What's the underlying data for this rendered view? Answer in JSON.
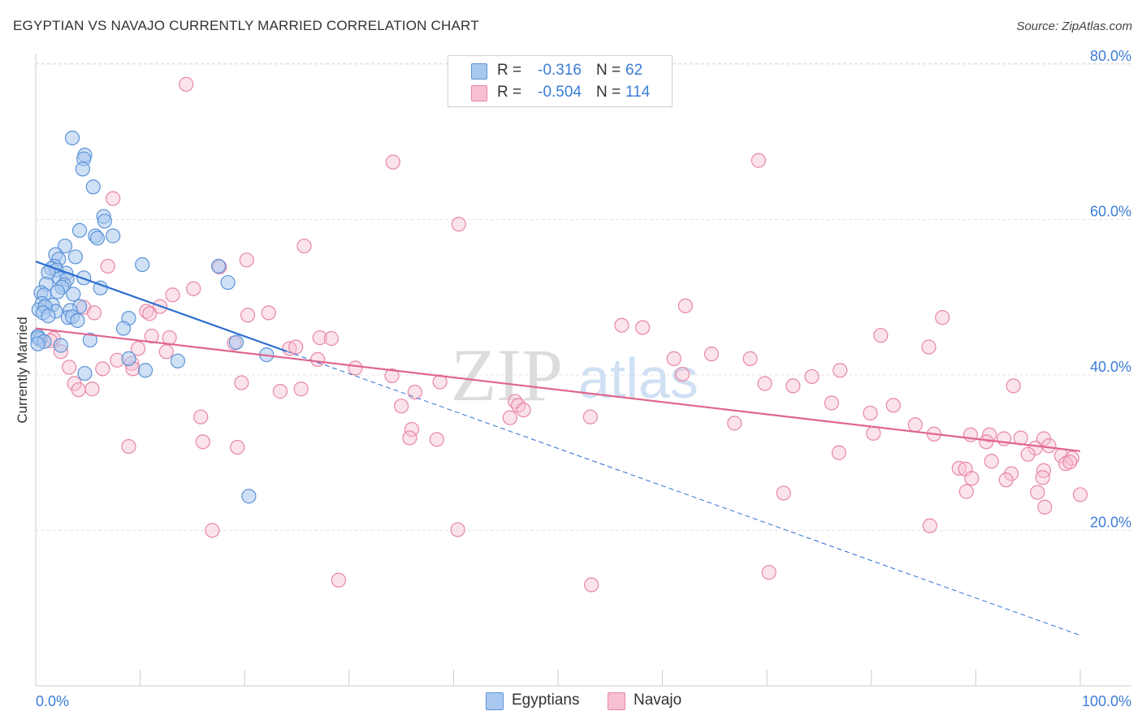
{
  "header": {
    "title": "EGYPTIAN VS NAVAJO CURRENTLY MARRIED CORRELATION CHART",
    "source": "Source: ZipAtlas.com"
  },
  "watermark": {
    "zip": "ZIP",
    "atlas": "atlas"
  },
  "legend": {
    "rows": [
      {
        "r_label": "R =",
        "r_value": "-0.316",
        "n_label": "N =",
        "n_value": "62"
      },
      {
        "r_label": "R =",
        "r_value": "-0.504",
        "n_label": "N =",
        "n_value": "114"
      }
    ]
  },
  "bottom_legend": {
    "egyptians": "Egyptians",
    "navajo": "Navajo"
  },
  "colors": {
    "blue_fill": "#a9c8ef",
    "blue_stroke": "#5b93d8",
    "blue_line": "#2e6fd0",
    "pink_fill": "#f7c0d2",
    "pink_stroke": "#e886a6",
    "pink_line": "#e0658e",
    "tick_label": "#3b7dd8",
    "grid": "#e4e4e4"
  },
  "chart_data": {
    "type": "scatter",
    "title": "EGYPTIAN VS NAVAJO CURRENTLY MARRIED CORRELATION CHART",
    "xlabel": "",
    "ylabel": "Currently Married",
    "xlim": [
      0,
      100
    ],
    "ylim": [
      0,
      80
    ],
    "x_tick_labels": [
      "0.0%",
      "100.0%"
    ],
    "y_ticks": [
      20,
      40,
      60,
      80
    ],
    "y_tick_labels": [
      "20.0%",
      "40.0%",
      "60.0%",
      "80.0%"
    ],
    "grid": true,
    "series": [
      {
        "name": "Egyptians",
        "r": -0.316,
        "n": 62,
        "trend": {
          "x0": 0,
          "y0": 54.6,
          "x1": 100,
          "y1": 6.5,
          "solid_until_x": 24
        },
        "points": [
          [
            3.5,
            70.5
          ],
          [
            4.7,
            68.3
          ],
          [
            4.6,
            67.8
          ],
          [
            4.5,
            66.5
          ],
          [
            5.5,
            64.2
          ],
          [
            6.5,
            60.4
          ],
          [
            6.6,
            59.8
          ],
          [
            4.2,
            58.6
          ],
          [
            5.7,
            57.9
          ],
          [
            7.4,
            57.9
          ],
          [
            5.9,
            57.6
          ],
          [
            2.8,
            56.6
          ],
          [
            1.9,
            55.5
          ],
          [
            3.8,
            55.2
          ],
          [
            2.2,
            54.9
          ],
          [
            10.2,
            54.2
          ],
          [
            17.5,
            54.0
          ],
          [
            1.8,
            54.0
          ],
          [
            1.5,
            53.7
          ],
          [
            2.0,
            53.5
          ],
          [
            1.2,
            53.2
          ],
          [
            2.9,
            53.1
          ],
          [
            4.6,
            52.5
          ],
          [
            2.3,
            52.4
          ],
          [
            3.0,
            52.3
          ],
          [
            18.4,
            51.9
          ],
          [
            1.0,
            51.7
          ],
          [
            2.7,
            51.6
          ],
          [
            2.5,
            51.3
          ],
          [
            6.2,
            51.2
          ],
          [
            2.1,
            50.7
          ],
          [
            3.6,
            50.4
          ],
          [
            0.5,
            50.6
          ],
          [
            0.8,
            50.3
          ],
          [
            0.6,
            49.2
          ],
          [
            1.6,
            49.0
          ],
          [
            4.2,
            48.8
          ],
          [
            0.3,
            48.4
          ],
          [
            1.9,
            48.2
          ],
          [
            0.9,
            48.8
          ],
          [
            3.3,
            48.3
          ],
          [
            0.7,
            48.0
          ],
          [
            1.2,
            47.6
          ],
          [
            3.1,
            47.4
          ],
          [
            3.5,
            47.5
          ],
          [
            4.0,
            47.0
          ],
          [
            8.9,
            47.3
          ],
          [
            8.4,
            46.0
          ],
          [
            0.2,
            45.0
          ],
          [
            0.4,
            44.6
          ],
          [
            5.2,
            44.5
          ],
          [
            0.2,
            44.8
          ],
          [
            0.8,
            44.3
          ],
          [
            19.2,
            44.2
          ],
          [
            2.4,
            43.8
          ],
          [
            22.1,
            42.6
          ],
          [
            8.9,
            42.1
          ],
          [
            13.6,
            41.8
          ],
          [
            10.5,
            40.6
          ],
          [
            4.7,
            40.2
          ],
          [
            20.4,
            24.4
          ],
          [
            0.2,
            44.0
          ]
        ]
      },
      {
        "name": "Navajo",
        "r": -0.504,
        "n": 114,
        "trend": {
          "x0": 0,
          "y0": 46.0,
          "x1": 100,
          "y1": 30.2
        },
        "points": [
          [
            14.4,
            77.4
          ],
          [
            34.2,
            67.4
          ],
          [
            69.2,
            67.6
          ],
          [
            7.4,
            62.7
          ],
          [
            40.5,
            59.4
          ],
          [
            25.7,
            56.6
          ],
          [
            20.2,
            54.8
          ],
          [
            6.9,
            54.0
          ],
          [
            17.6,
            53.9
          ],
          [
            15.1,
            51.1
          ],
          [
            13.1,
            50.3
          ],
          [
            62.2,
            48.9
          ],
          [
            11.9,
            48.8
          ],
          [
            4.6,
            48.7
          ],
          [
            5.6,
            48.0
          ],
          [
            10.6,
            48.2
          ],
          [
            10.9,
            47.9
          ],
          [
            20.3,
            47.7
          ],
          [
            22.3,
            48.0
          ],
          [
            86.8,
            47.4
          ],
          [
            56.1,
            46.4
          ],
          [
            58.1,
            46.1
          ],
          [
            11.1,
            45.0
          ],
          [
            12.8,
            44.8
          ],
          [
            27.2,
            44.8
          ],
          [
            28.3,
            44.7
          ],
          [
            80.9,
            45.1
          ],
          [
            1.7,
            44.7
          ],
          [
            1.4,
            44.4
          ],
          [
            19.0,
            44.1
          ],
          [
            24.3,
            43.4
          ],
          [
            24.9,
            43.6
          ],
          [
            2.4,
            43.0
          ],
          [
            85.5,
            43.6
          ],
          [
            9.8,
            43.4
          ],
          [
            12.5,
            43.0
          ],
          [
            64.7,
            42.7
          ],
          [
            61.1,
            42.1
          ],
          [
            68.4,
            42.1
          ],
          [
            7.8,
            41.9
          ],
          [
            9.2,
            41.5
          ],
          [
            27.0,
            42.0
          ],
          [
            3.2,
            41.0
          ],
          [
            6.4,
            40.8
          ],
          [
            9.3,
            40.8
          ],
          [
            30.6,
            40.9
          ],
          [
            77.0,
            40.6
          ],
          [
            61.9,
            40.1
          ],
          [
            34.1,
            39.9
          ],
          [
            74.3,
            39.8
          ],
          [
            3.7,
            38.9
          ],
          [
            19.7,
            39.0
          ],
          [
            38.7,
            39.1
          ],
          [
            69.8,
            38.9
          ],
          [
            72.5,
            38.6
          ],
          [
            93.6,
            38.6
          ],
          [
            4.1,
            38.1
          ],
          [
            5.4,
            38.2
          ],
          [
            23.4,
            37.9
          ],
          [
            25.4,
            38.2
          ],
          [
            36.3,
            37.8
          ],
          [
            79.9,
            35.1
          ],
          [
            45.9,
            36.6
          ],
          [
            35.0,
            36.0
          ],
          [
            46.2,
            36.1
          ],
          [
            76.2,
            36.4
          ],
          [
            46.7,
            35.5
          ],
          [
            82.1,
            36.1
          ],
          [
            15.8,
            34.6
          ],
          [
            45.4,
            34.5
          ],
          [
            53.1,
            34.6
          ],
          [
            66.9,
            33.8
          ],
          [
            84.2,
            33.6
          ],
          [
            36.0,
            33.0
          ],
          [
            80.2,
            32.5
          ],
          [
            86.0,
            32.4
          ],
          [
            89.5,
            32.3
          ],
          [
            91.3,
            32.3
          ],
          [
            94.3,
            31.9
          ],
          [
            35.8,
            31.9
          ],
          [
            38.4,
            31.7
          ],
          [
            16.0,
            31.4
          ],
          [
            92.7,
            31.8
          ],
          [
            96.5,
            31.8
          ],
          [
            91.0,
            31.4
          ],
          [
            97.0,
            30.9
          ],
          [
            8.9,
            30.8
          ],
          [
            19.3,
            30.7
          ],
          [
            95.7,
            30.6
          ],
          [
            76.9,
            30.0
          ],
          [
            95.0,
            29.8
          ],
          [
            98.2,
            29.6
          ],
          [
            99.2,
            29.3
          ],
          [
            98.6,
            28.6
          ],
          [
            91.5,
            28.9
          ],
          [
            99.0,
            28.8
          ],
          [
            88.4,
            28.0
          ],
          [
            89.0,
            27.9
          ],
          [
            96.5,
            27.7
          ],
          [
            93.4,
            27.3
          ],
          [
            89.6,
            26.7
          ],
          [
            92.9,
            26.5
          ],
          [
            96.4,
            26.8
          ],
          [
            89.1,
            25.0
          ],
          [
            71.6,
            24.8
          ],
          [
            95.9,
            24.9
          ],
          [
            100.0,
            24.6
          ],
          [
            96.6,
            23.0
          ],
          [
            85.6,
            20.6
          ],
          [
            16.9,
            20.0
          ],
          [
            40.4,
            20.1
          ],
          [
            70.2,
            14.6
          ],
          [
            29.0,
            13.6
          ],
          [
            53.2,
            13.0
          ]
        ]
      }
    ]
  }
}
